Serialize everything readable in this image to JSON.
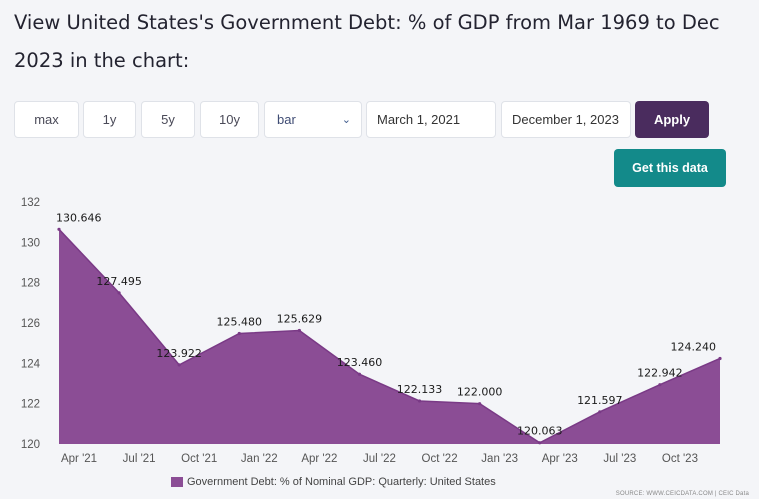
{
  "page": {
    "title": "View United States's Government Debt: % of GDP from Mar 1969 to Dec 2023 in the chart:"
  },
  "controls": {
    "range_buttons": [
      "max",
      "1y",
      "5y",
      "10y"
    ],
    "chart_type_selected": "bar",
    "start_date": "March 1, 2021",
    "end_date": "December 1, 2023",
    "apply_label": "Apply",
    "get_data_label": "Get this data"
  },
  "colors": {
    "area_fill": "#8b4d95",
    "area_line": "#7a3a86",
    "apply_bg": "#4a2c5e",
    "get_data_bg": "#138a8a"
  },
  "chart_data": {
    "type": "area",
    "x": [
      "Mar 2021",
      "Jun 2021",
      "Sep 2021",
      "Dec 2021",
      "Mar 2022",
      "Jun 2022",
      "Sep 2022",
      "Dec 2022",
      "Mar 2023",
      "Jun 2023",
      "Sep 2023",
      "Dec 2023"
    ],
    "x_tick_labels": [
      "Apr '21",
      "Jul '21",
      "Oct '21",
      "Jan '22",
      "Apr '22",
      "Jul '22",
      "Oct '22",
      "Jan '23",
      "Apr '23",
      "Jul '23",
      "Oct '23"
    ],
    "series": [
      {
        "name": "Government Debt: % of Nominal GDP: Quarterly: United States",
        "values": [
          130.646,
          127.495,
          123.922,
          125.48,
          125.629,
          123.46,
          122.133,
          122.0,
          120.063,
          121.597,
          122.942,
          124.24
        ],
        "labels": [
          "130.646",
          "127.495",
          "123.922",
          "125.480",
          "125.629",
          "123.460",
          "122.133",
          "122.000",
          "120.063",
          "121.597",
          "122.942",
          "124.240"
        ]
      }
    ],
    "y_ticks": [
      "120",
      "122",
      "124",
      "126",
      "128",
      "130",
      "132"
    ],
    "ylim": [
      120,
      132
    ],
    "legend": "bottom-center",
    "grid": false
  },
  "source_note": "SOURCE: WWW.CEICDATA.COM | CEIC Data"
}
